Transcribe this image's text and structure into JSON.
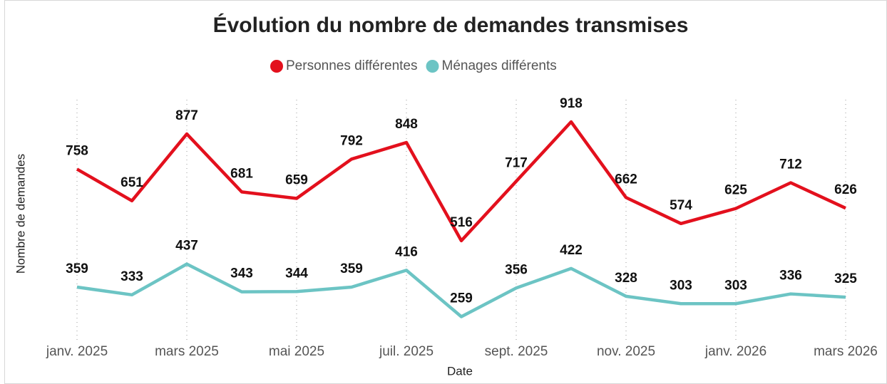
{
  "chart_data": {
    "type": "line",
    "title": "Évolution du nombre de demandes transmises",
    "xlabel": "Date",
    "ylabel": "Nombre de demandes",
    "categories": [
      "janv. 2025",
      null,
      "mars 2025",
      null,
      "mai 2025",
      null,
      "juil. 2025",
      null,
      "sept. 2025",
      null,
      "nov. 2025",
      null,
      "janv. 2026",
      null,
      "mars 2026"
    ],
    "series": [
      {
        "name": "Personnes différentes",
        "color": "#e3101d",
        "values": [
          758,
          651,
          877,
          681,
          659,
          792,
          848,
          516,
          717,
          918,
          662,
          574,
          625,
          712,
          626
        ]
      },
      {
        "name": "Ménages différents",
        "color": "#6cc4c4",
        "values": [
          359,
          333,
          437,
          343,
          344,
          359,
          416,
          259,
          356,
          422,
          328,
          303,
          303,
          336,
          325
        ]
      }
    ],
    "ylim": [
      200,
      1000
    ],
    "grid": true
  }
}
